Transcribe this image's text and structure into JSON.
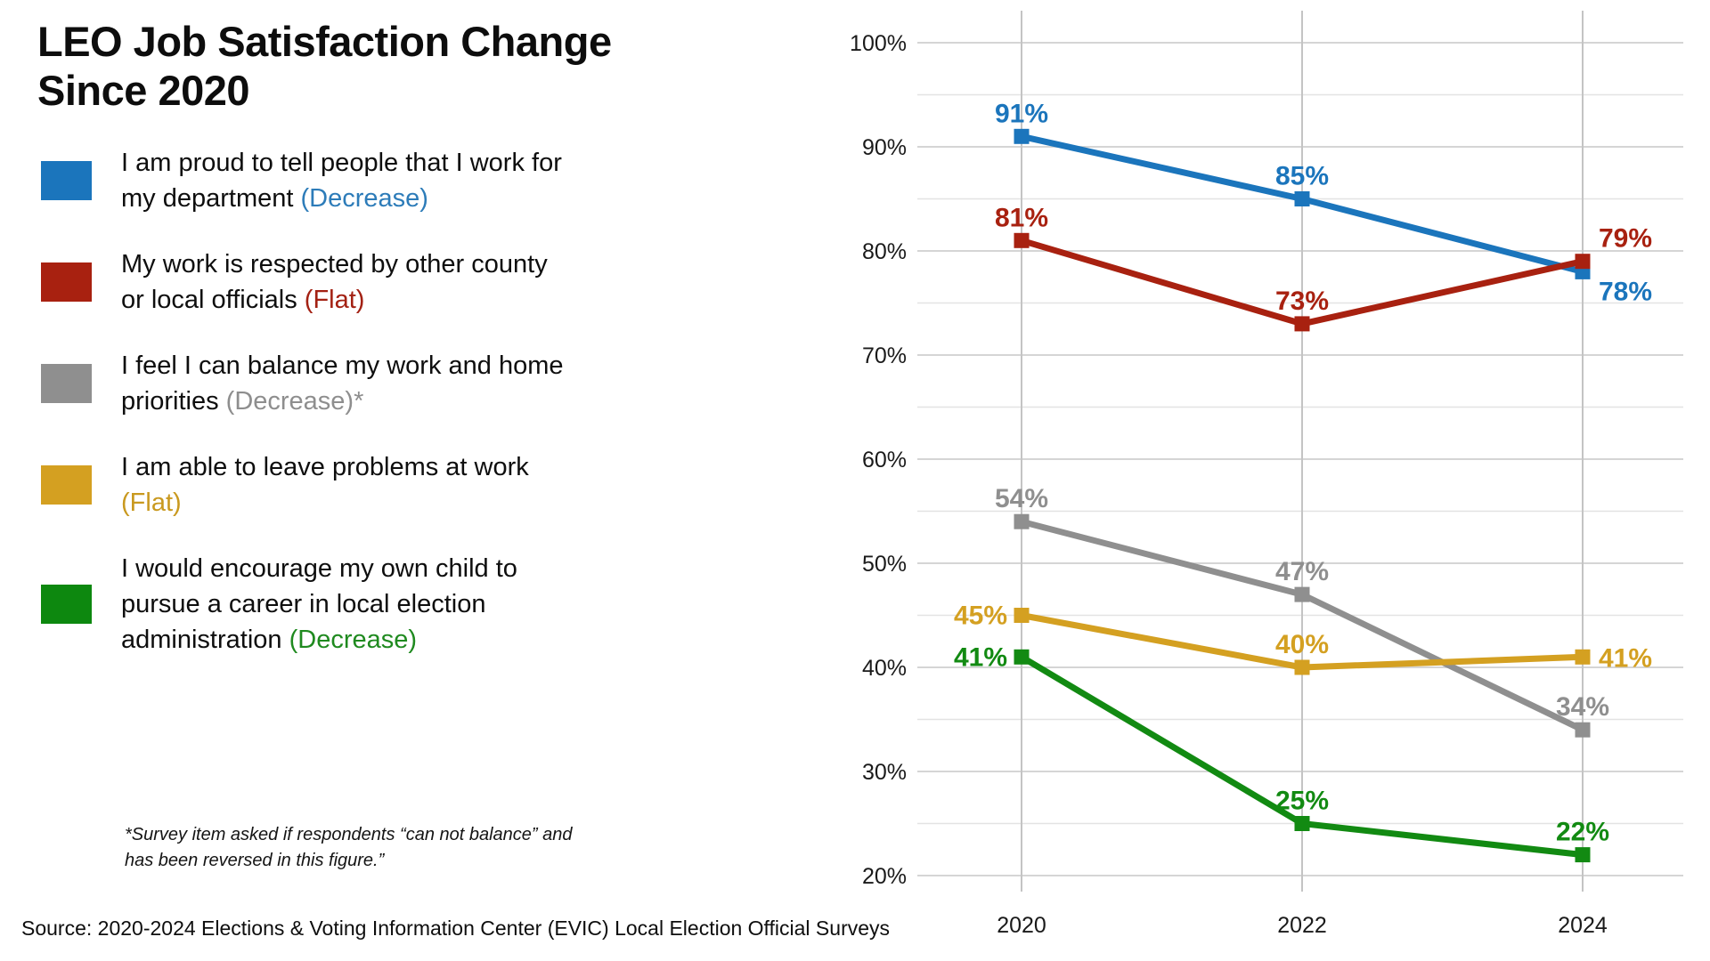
{
  "title": {
    "line1": "LEO Job Satisfaction Change",
    "line2": "Since 2020"
  },
  "legend": {
    "items": [
      {
        "lines": [
          "I am proud to tell people that I work for",
          "my department "
        ],
        "trend": "(Decrease)",
        "swatch_color": "#1b75bc",
        "trend_color": "#2d7cb9"
      },
      {
        "lines": [
          "My work is respected by other county",
          "or local officials "
        ],
        "trend": "(Flat)",
        "swatch_color": "#a82110",
        "trend_color": "#a32113"
      },
      {
        "lines": [
          "I feel I can balance my work and home",
          "priorities "
        ],
        "trend": "(Decrease)*",
        "swatch_color": "#8f8f8f",
        "trend_color": "#8e8e8e"
      },
      {
        "lines": [
          "I am able to leave problems at work",
          ""
        ],
        "trend": "(Flat)",
        "swatch_color": "#d4a021",
        "trend_color": "#c9991f"
      },
      {
        "lines": [
          "I would encourage my own child to",
          "pursue a career in local election",
          "administration "
        ],
        "trend": "(Decrease)",
        "swatch_color": "#0d880f",
        "trend_color": "#1f8a1f"
      }
    ]
  },
  "footnote": "*Survey item asked if respondents “can not balance” and has been reversed in this figure.”",
  "source": "Source: 2020-2024 Elections & Voting Information Center (EVIC) Local Election Official Surveys",
  "chart_data": {
    "type": "line",
    "title": "LEO Job Satisfaction Change Since 2020",
    "x_labels": [
      "2020",
      "2022",
      "2024"
    ],
    "y_tick_values": [
      100,
      90,
      80,
      70,
      60,
      50,
      40,
      30,
      20
    ],
    "y_tick_labels": [
      "100%",
      "90%",
      "80%",
      "70%",
      "60%",
      "50%",
      "40%",
      "30%",
      "20%"
    ],
    "ylim": [
      20,
      100
    ],
    "grid": "horizontal lines every 5%, labeled every 10%; vertical lines at each year",
    "legend_position": "left panel",
    "series": [
      {
        "name": "I am proud to tell people that I work for my department",
        "trend": "Decrease",
        "color": "#1b75bc",
        "values": [
          91,
          85,
          78
        ],
        "labels": [
          "91%",
          "85%",
          "78%"
        ],
        "label_pos": [
          "above",
          "above",
          "right-below"
        ]
      },
      {
        "name": "My work is respected by other county or local officials",
        "trend": "Flat",
        "color": "#a82110",
        "values": [
          81,
          73,
          79
        ],
        "labels": [
          "81%",
          "73%",
          "79%"
        ],
        "label_pos": [
          "above",
          "above",
          "right-above"
        ]
      },
      {
        "name": "I feel I can balance my work and home priorities",
        "trend": "Decrease",
        "color": "#8f8f8f",
        "values": [
          54,
          47,
          34
        ],
        "labels": [
          "54%",
          "47%",
          "34%"
        ],
        "label_pos": [
          "above",
          "above",
          "above"
        ]
      },
      {
        "name": "I am able to leave problems at work",
        "trend": "Flat",
        "color": "#d4a021",
        "values": [
          45,
          40,
          41
        ],
        "labels": [
          "45%",
          "40%",
          "41%"
        ],
        "label_pos": [
          "left",
          "above",
          "right"
        ]
      },
      {
        "name": "I would encourage my own child to pursue a career in local election administration",
        "trend": "Decrease",
        "color": "#128a12",
        "values": [
          41,
          25,
          22
        ],
        "labels": [
          "41%",
          "25%",
          "22%"
        ],
        "label_pos": [
          "left",
          "above",
          "above"
        ]
      }
    ]
  }
}
